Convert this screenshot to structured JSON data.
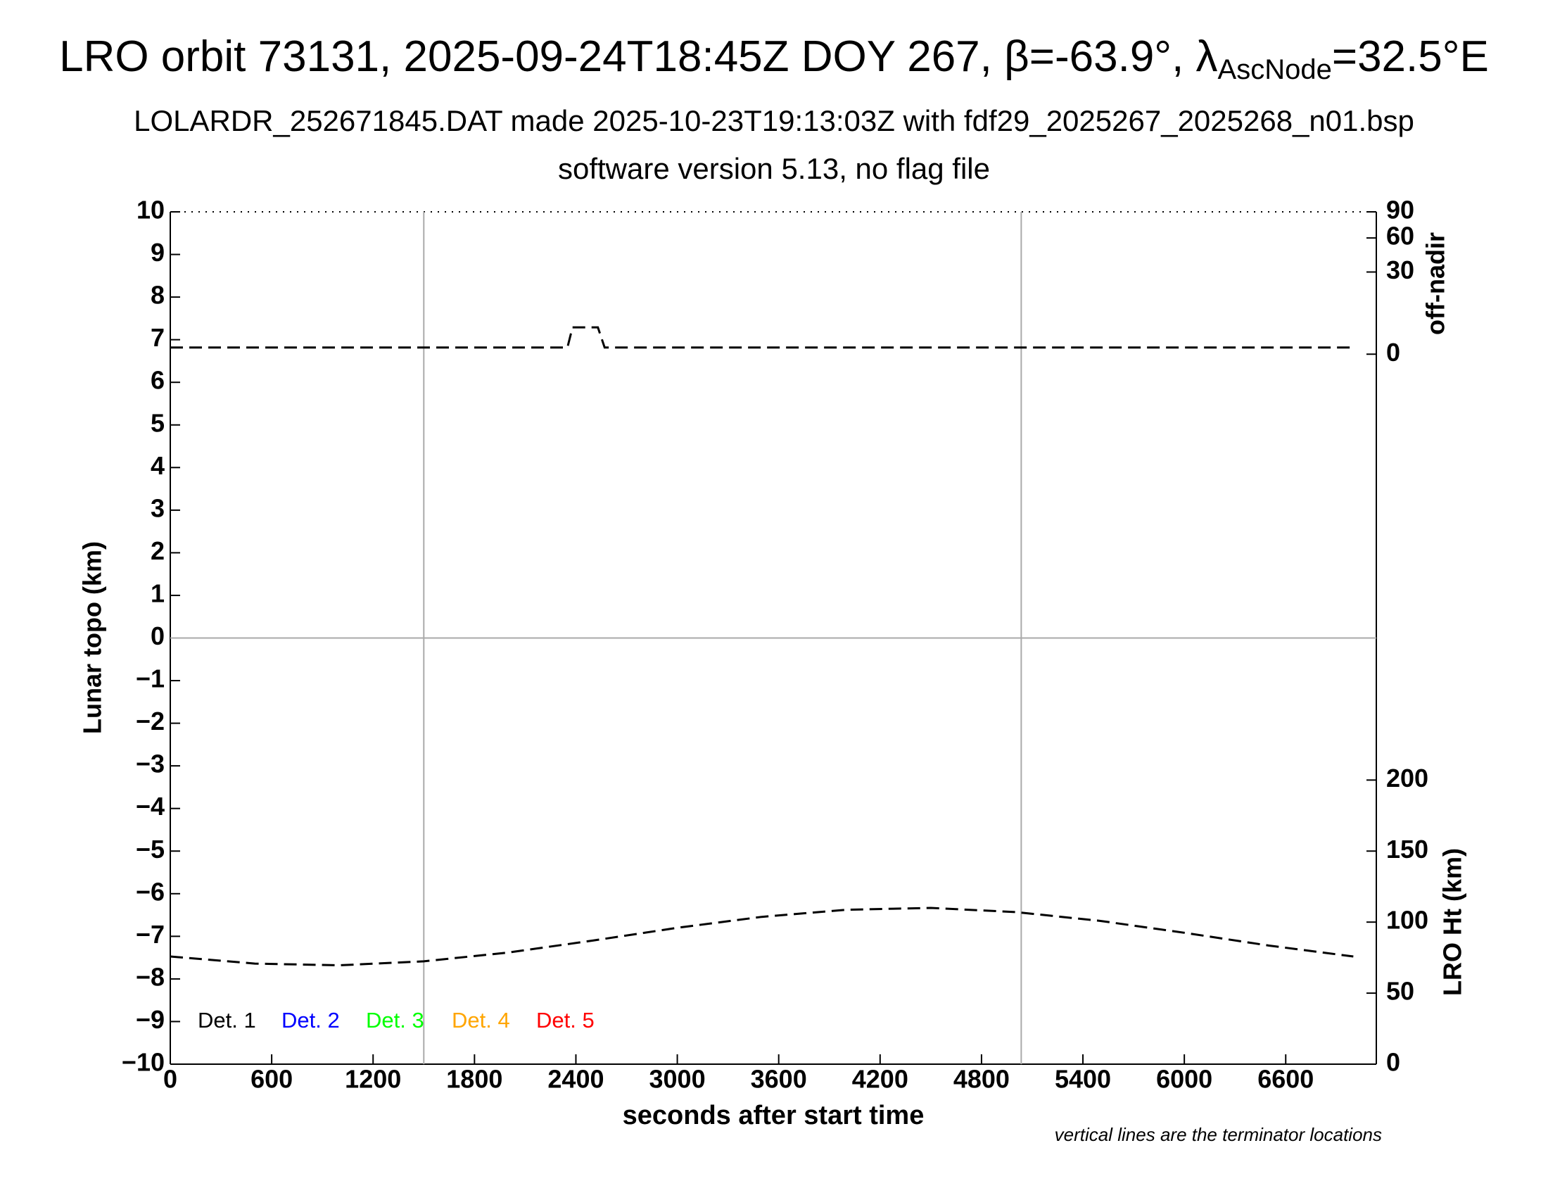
{
  "chart_data": {
    "type": "line",
    "title": {
      "text": "LRO orbit 73131, 2025-09-24T18:45Z DOY 267, β=-63.9°, λ",
      "subscript": "AscNode",
      "tail": "=32.5°E"
    },
    "subtitle": "LOLARDR_252671845.DAT made 2025-10-23T19:13:03Z with fdf29_2025267_2025268_n01.bsp",
    "subtitle2": "software version 5.13, no flag file",
    "xlabel": "seconds after start time",
    "ylabel": "Lunar topo (km)",
    "y2label": "LRO Ht (km)",
    "y3label": "off-nadir",
    "note": "vertical lines are the terminator locations",
    "xlim": [
      0,
      7136
    ],
    "xticks": [
      0,
      600,
      1200,
      1800,
      2400,
      3000,
      3600,
      4200,
      4800,
      5400,
      6000,
      6600
    ],
    "ylim": [
      -10,
      10
    ],
    "yticks": [
      {
        "value": -10,
        "label": "−10"
      },
      {
        "value": -9,
        "label": "−9"
      },
      {
        "value": -8,
        "label": "−8"
      },
      {
        "value": -7,
        "label": "−7"
      },
      {
        "value": -6,
        "label": "−6"
      },
      {
        "value": -5,
        "label": "−5"
      },
      {
        "value": -4,
        "label": "−4"
      },
      {
        "value": -3,
        "label": "−3"
      },
      {
        "value": -2,
        "label": "−2"
      },
      {
        "value": -1,
        "label": "−1"
      },
      0,
      1,
      2,
      3,
      4,
      5,
      6,
      7,
      8,
      9,
      10
    ],
    "y2lim": [
      0,
      600
    ],
    "y2ticks": [
      0,
      50,
      100,
      150,
      200
    ],
    "y3lim": [
      0,
      90
    ],
    "y3scale": "sqrt",
    "y3ticks": [
      0,
      30,
      60,
      90
    ],
    "zero_line": true,
    "terminators": [
      1500,
      5035
    ],
    "legend": [
      {
        "name": "Det. 1",
        "color": "#000000"
      },
      {
        "name": "Det. 2",
        "color": "#0000ff"
      },
      {
        "name": "Det. 3",
        "color": "#00ff00"
      },
      {
        "name": "Det. 4",
        "color": "#ffa500"
      },
      {
        "name": "Det. 5",
        "color": "#ff0000"
      }
    ],
    "series": [
      {
        "axis": "y2",
        "color": "#000000",
        "x": [
          0,
          500,
          1000,
          1500,
          2000,
          2500,
          3000,
          3500,
          4000,
          4500,
          5000,
          5500,
          6000,
          6500,
          7000
        ],
        "values": [
          75.8,
          70.8,
          69.6,
          72.4,
          78.6,
          87.0,
          96.0,
          103.7,
          108.7,
          110.0,
          107.1,
          100.9,
          92.5,
          83.5,
          75.8
        ]
      },
      {
        "axis": "y3",
        "color": "#000000",
        "x": [
          0,
          2350,
          2380,
          2530,
          2570,
          7000
        ],
        "values": [
          0.2,
          0.2,
          3.2,
          3.2,
          0.2,
          0.2
        ]
      }
    ]
  }
}
